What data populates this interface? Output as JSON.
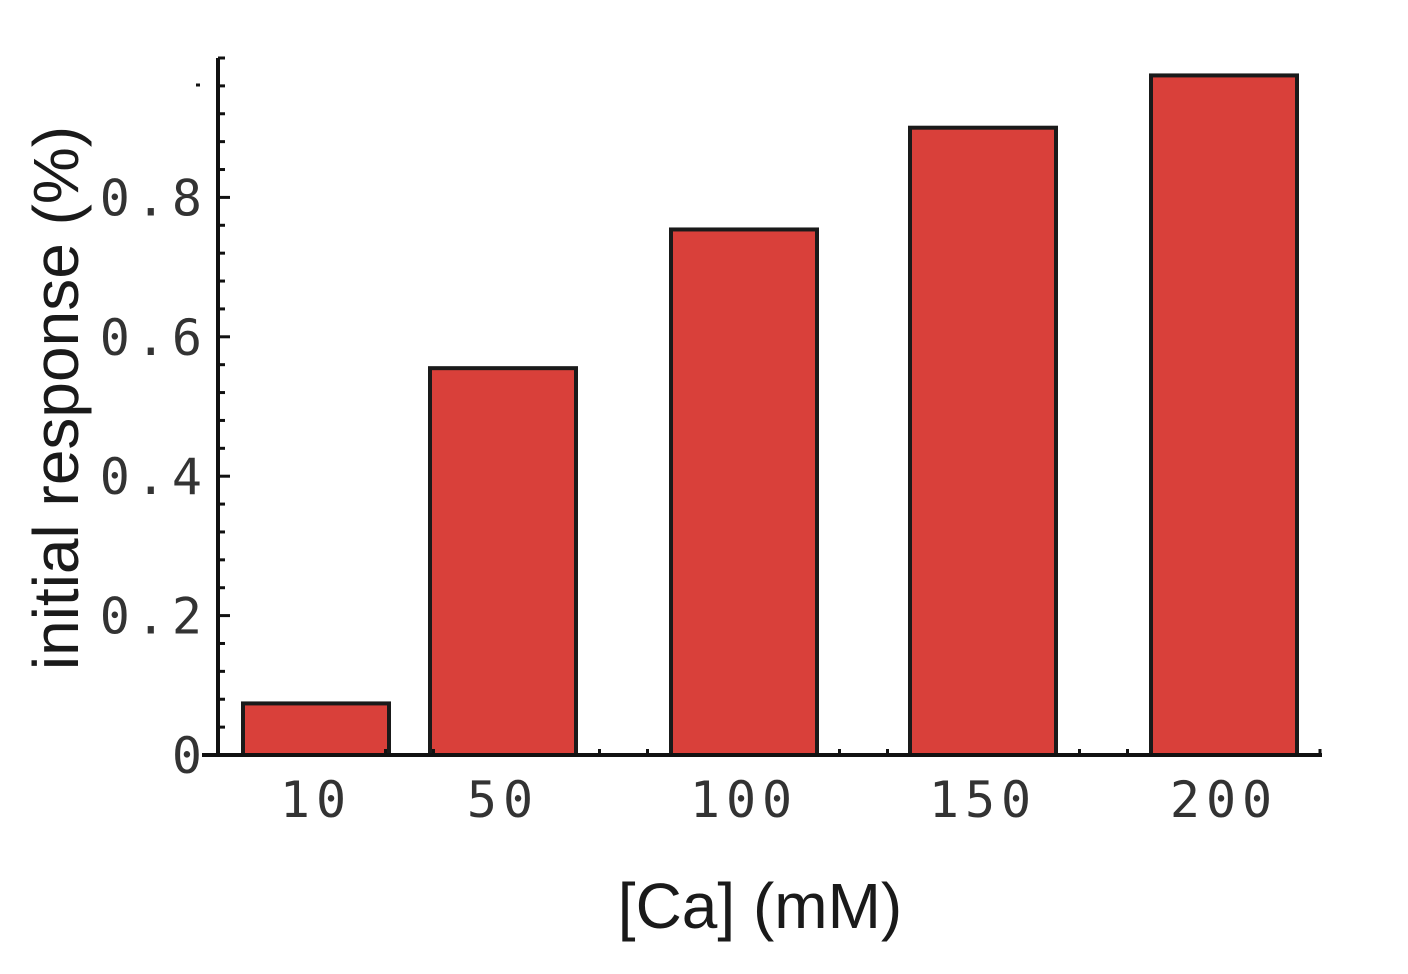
{
  "chart_data": {
    "type": "bar",
    "categories": [
      "10",
      "50",
      "100",
      "150",
      "200"
    ],
    "values": [
      0.074,
      0.555,
      0.754,
      0.9,
      0.975
    ],
    "xlabel": "[Ca] (mM)",
    "ylabel": "initial response (%)",
    "ylim": [
      0,
      1.0
    ],
    "yticks": [
      0,
      0.2,
      0.4,
      0.6,
      0.8
    ],
    "ytick_labels": [
      "0",
      "0.2",
      "0.4",
      "0.6",
      "0.8"
    ],
    "grid": false,
    "legend": "none",
    "bar_color": "#d9403a",
    "bar_edge_color": "#1a1a1a"
  }
}
